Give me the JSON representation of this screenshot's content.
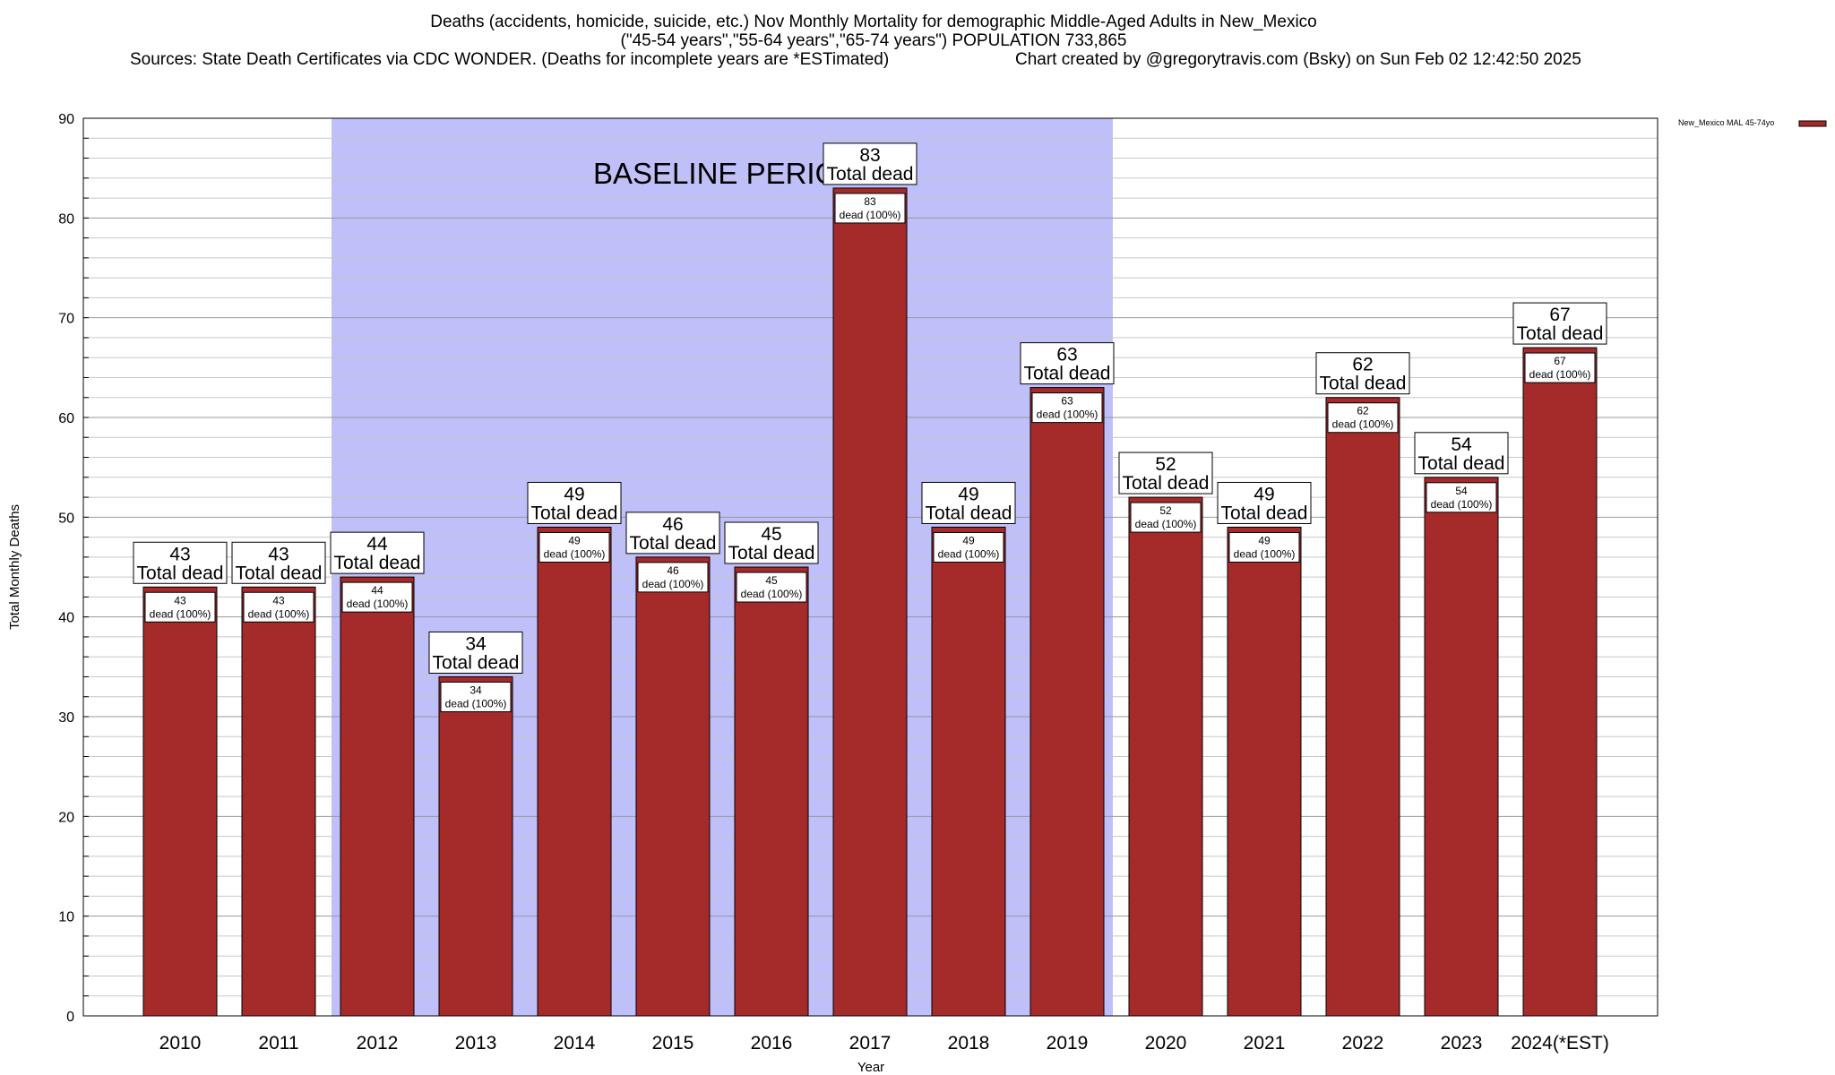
{
  "header": {
    "line1": "Deaths (accidents, homicide, suicide, etc.) Nov Monthly Mortality for demographic Middle-Aged Adults in New_Mexico",
    "line2": "(\"45-54 years\",\"55-64 years\",\"65-74 years\") POPULATION 733,865",
    "line3_left": "Sources: State Death Certificates via CDC WONDER. (Deaths for incomplete years are *ESTimated)",
    "line3_right": "Chart created by @gregorytravis.com (Bsky) on Sun Feb 02 12:42:50 2025"
  },
  "chart_data": {
    "type": "bar",
    "xlabel": "Year",
    "ylabel": "Total Monthly Deaths",
    "ylim": [
      0,
      90
    ],
    "yticks": [
      0,
      10,
      20,
      30,
      40,
      50,
      60,
      70,
      80,
      90
    ],
    "grid": true,
    "categories": [
      "2010",
      "2011",
      "2012",
      "2013",
      "2014",
      "2015",
      "2016",
      "2017",
      "2018",
      "2019",
      "2020",
      "2021",
      "2022",
      "2023",
      "2024(*EST)"
    ],
    "series": [
      {
        "name": "New_Mexico MAL 45-74yo",
        "color": "#a52a2a",
        "values": [
          43,
          43,
          44,
          34,
          49,
          46,
          45,
          83,
          49,
          63,
          52,
          49,
          62,
          54,
          67
        ]
      }
    ],
    "top_label_suffix": "Total dead",
    "inner_label_suffix": "dead (100%)",
    "baseline_period": {
      "label": "BASELINE PERIOD",
      "from_category": "2012",
      "to_category": "2019",
      "color": "#bfbffa"
    },
    "legend_position": "top-right"
  }
}
